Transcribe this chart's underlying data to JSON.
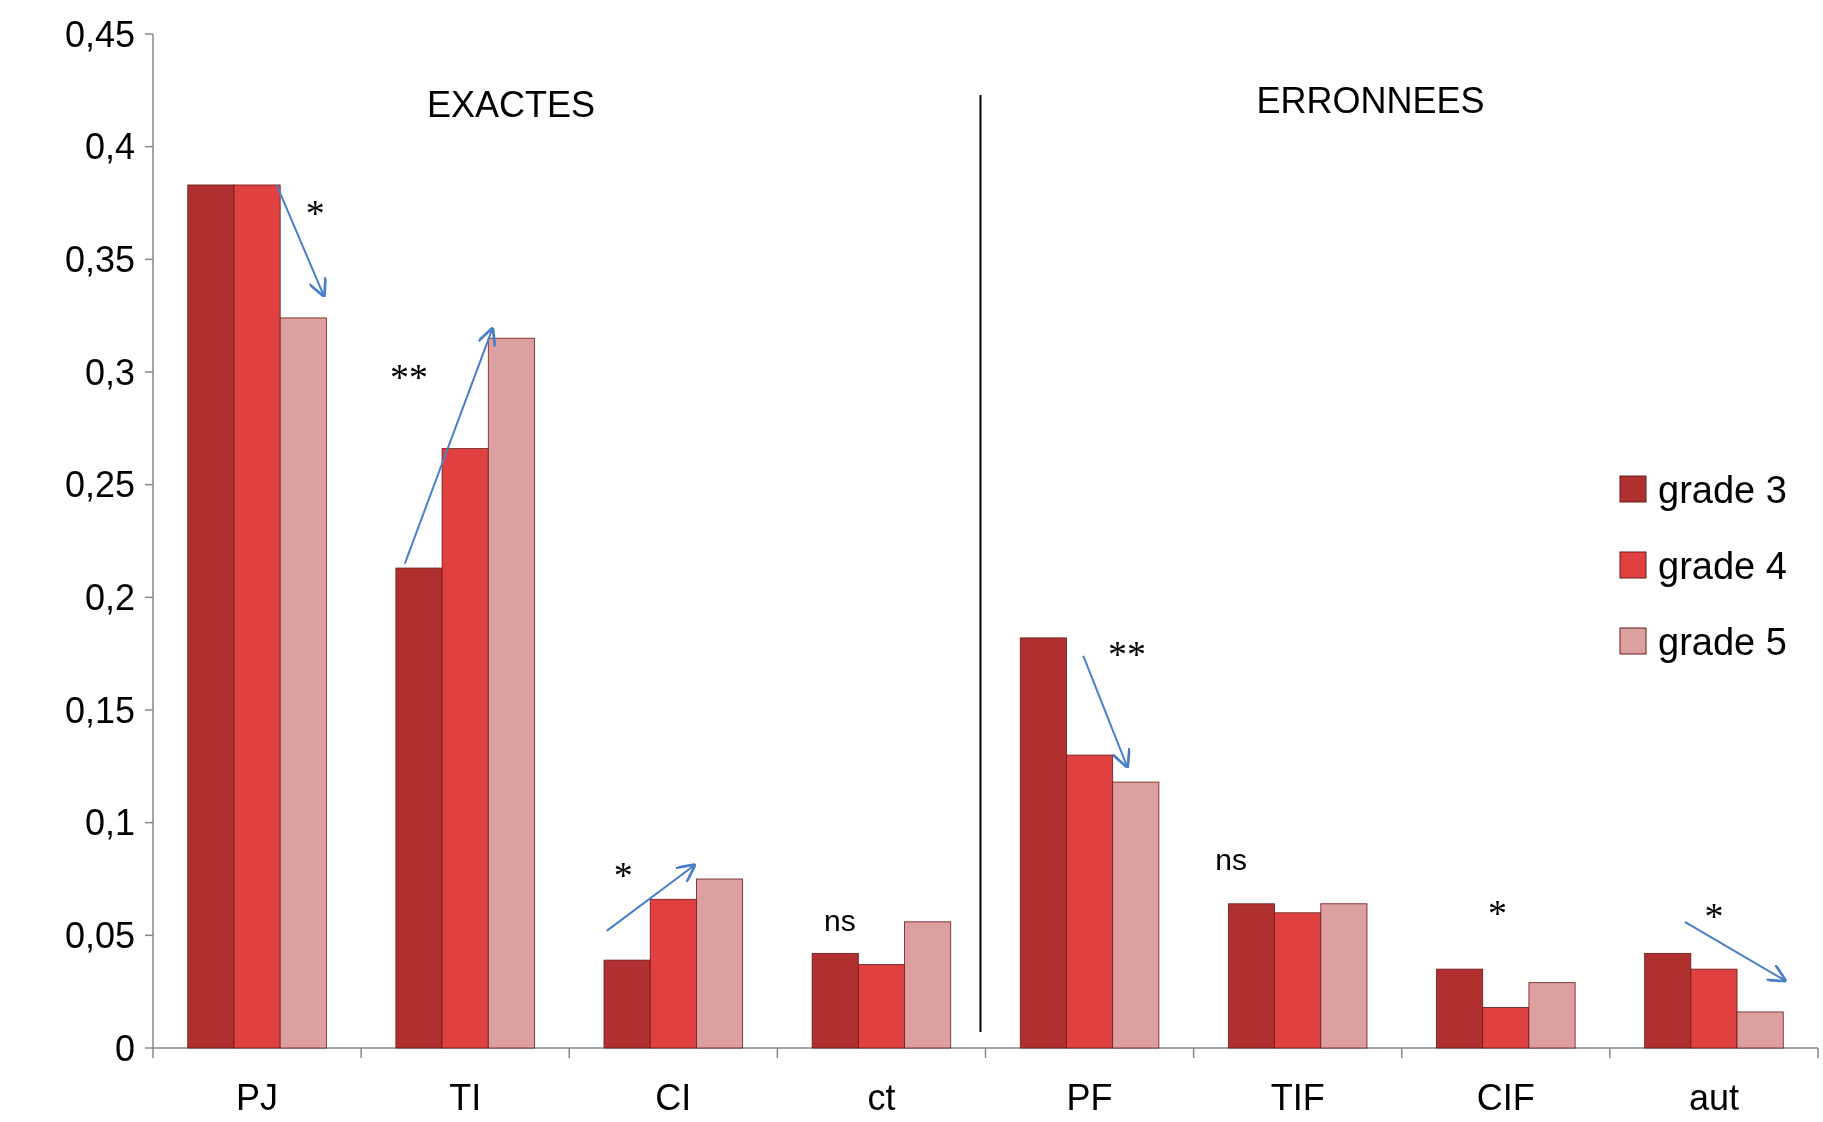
{
  "chart_data": {
    "type": "bar",
    "categories": [
      "PJ",
      "TI",
      "CI",
      "ct",
      "PF",
      "TIF",
      "CIF",
      "aut"
    ],
    "series": [
      {
        "name": "grade 3",
        "color": "#b03030",
        "values": [
          0.383,
          0.213,
          0.039,
          0.042,
          0.182,
          0.064,
          0.035,
          0.042
        ]
      },
      {
        "name": "grade 4",
        "color": "#e04040",
        "values": [
          0.383,
          0.266,
          0.066,
          0.037,
          0.13,
          0.06,
          0.018,
          0.035
        ]
      },
      {
        "name": "grade 5",
        "color": "#dca0a0",
        "values": [
          0.324,
          0.315,
          0.075,
          0.056,
          0.118,
          0.064,
          0.029,
          0.016
        ]
      }
    ],
    "ylim": [
      0,
      0.45
    ],
    "yticks": [
      {
        "value": 0,
        "label": "0"
      },
      {
        "value": 0.05,
        "label": "0,05"
      },
      {
        "value": 0.1,
        "label": "0,1"
      },
      {
        "value": 0.15,
        "label": "0,15"
      },
      {
        "value": 0.2,
        "label": "0,2"
      },
      {
        "value": 0.25,
        "label": "0,25"
      },
      {
        "value": 0.3,
        "label": "0,3"
      },
      {
        "value": 0.35,
        "label": "0,35"
      },
      {
        "value": 0.4,
        "label": "0,4"
      },
      {
        "value": 0.45,
        "label": "0,45"
      }
    ],
    "grid": false,
    "legend": "right",
    "annotations": [
      "EXACTES",
      "ERRONNEES",
      "*",
      "**",
      "*",
      "ns",
      "**",
      "ns",
      "*",
      "*"
    ]
  }
}
